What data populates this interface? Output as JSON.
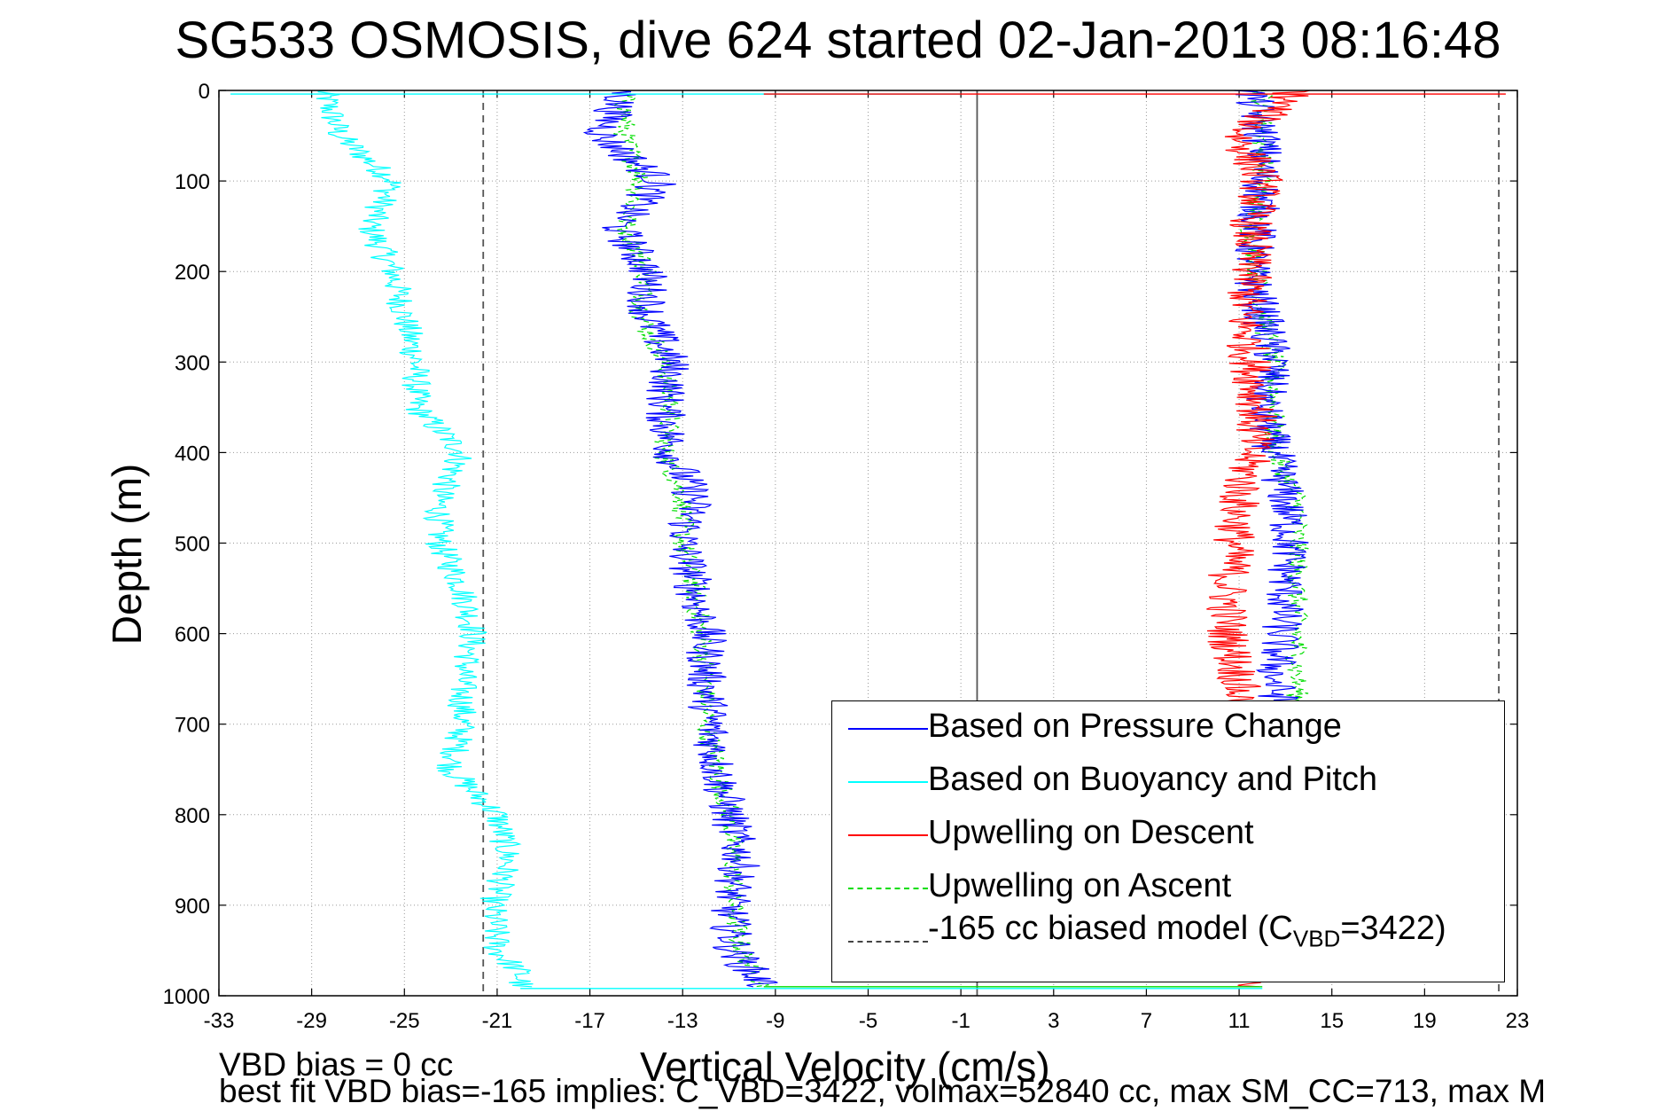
{
  "title": "SG533 OSMOSIS, dive 624 started 02-Jan-2013 08:16:48",
  "footer": {
    "line1": "VBD bias = 0 cc",
    "line2": "best fit VBD bias=-165 implies: C_VBD=3422, volmax=52840 cc, max SM_CC=713, max M"
  },
  "chart_data": {
    "type": "line",
    "title": "SG533 OSMOSIS, dive 624 started 02-Jan-2013 08:16:48",
    "xlabel": "Vertical Velocity (cm/s)",
    "ylabel": "Depth (m)",
    "xlim": [
      -33,
      23
    ],
    "ylim": [
      1000,
      0
    ],
    "x_inverted": false,
    "y_inverted": true,
    "x_ticks": [
      "-33",
      "-29",
      "-25",
      "-21",
      "-17",
      "-13",
      "-9",
      "-5",
      "-1",
      "3",
      "7",
      "11",
      "15",
      "19",
      "23"
    ],
    "y_ticks": [
      "0",
      "100",
      "200",
      "300",
      "400",
      "500",
      "600",
      "700",
      "800",
      "900",
      "1000"
    ],
    "grid": true,
    "legend_position": "bottom-right",
    "reference_lines": [
      {
        "x": -21.6,
        "style": "dashed",
        "color": "#555555"
      },
      {
        "x": -0.3,
        "style": "solid",
        "color": "#555555"
      },
      {
        "x": 22.2,
        "style": "dashed",
        "color": "#555555"
      }
    ],
    "series": [
      {
        "name": "Based on Pressure Change",
        "color": "#0000ff",
        "style": "solid",
        "depth": [
          0,
          50,
          100,
          150,
          200,
          250,
          300,
          350,
          400,
          450,
          500,
          550,
          600,
          650,
          700,
          750,
          800,
          850,
          900,
          950,
          990
        ],
        "x": [
          -15.5,
          -16.5,
          -14.0,
          -15.8,
          -14.5,
          -14.5,
          -13.5,
          -13.8,
          -13.5,
          -12.5,
          -13.0,
          -12.5,
          -12.0,
          -12.0,
          -11.8,
          -11.5,
          -11.0,
          -10.5,
          -11.0,
          -10.8,
          -9.5
        ],
        "depth_ascent": [
          0,
          50,
          100,
          150,
          200,
          250,
          300,
          350,
          400,
          450,
          500,
          550,
          600,
          650,
          700
        ],
        "x_ascent": [
          11.5,
          12.0,
          12.0,
          11.8,
          11.5,
          12.0,
          12.5,
          12.0,
          12.5,
          13.0,
          13.2,
          13.0,
          12.8,
          12.5,
          13.0
        ]
      },
      {
        "name": "Based on Buoyancy and Pitch",
        "color": "#00ffff",
        "style": "solid",
        "depth": [
          0,
          50,
          100,
          150,
          200,
          250,
          300,
          350,
          400,
          450,
          500,
          550,
          600,
          650,
          700,
          750,
          800,
          850,
          900,
          950,
          975,
          990
        ],
        "x": [
          -28.5,
          -27.8,
          -25.5,
          -26.5,
          -25.5,
          -25.0,
          -24.5,
          -24.5,
          -22.5,
          -23.5,
          -23.5,
          -22.5,
          -22.0,
          -22.5,
          -22.5,
          -23.0,
          -21.0,
          -20.5,
          -21.2,
          -21.0,
          -20.0,
          -20.0
        ]
      },
      {
        "name": "Upwelling on Descent",
        "color": "#ff0000",
        "style": "solid",
        "depth": [
          0,
          50,
          100,
          150,
          200,
          250,
          300,
          350,
          400,
          450,
          500,
          550,
          600,
          650,
          990
        ],
        "x": [
          13.5,
          11.0,
          12.0,
          11.5,
          11.5,
          11.2,
          11.5,
          11.8,
          11.5,
          11.0,
          10.8,
          10.5,
          10.5,
          11.0,
          11.0
        ]
      },
      {
        "name": "Upwelling on Ascent",
        "color": "#00dd00",
        "style": "dashed",
        "depth": [
          0,
          50,
          100,
          150,
          200,
          250,
          300,
          350,
          400,
          450,
          500,
          550,
          600,
          650,
          700,
          750,
          800,
          850,
          900,
          950,
          990
        ],
        "x": [
          -15.5,
          -15.5,
          -14.8,
          -15.5,
          -14.5,
          -14.8,
          -13.8,
          -13.5,
          -13.8,
          -13.0,
          -13.0,
          -12.5,
          -12.2,
          -12.0,
          -12.0,
          -11.5,
          -11.0,
          -10.8,
          -10.8,
          -10.5,
          -9.5
        ],
        "depth_ascent": [
          0,
          50,
          100,
          150,
          200,
          250,
          300,
          350,
          400,
          450,
          500,
          550,
          600,
          650,
          700
        ],
        "x_ascent": [
          12.0,
          12.0,
          12.0,
          11.5,
          11.8,
          12.0,
          12.5,
          12.5,
          12.5,
          13.5,
          13.5,
          13.5,
          13.5,
          13.5,
          13.5
        ]
      },
      {
        "name_prefix": "-165 cc biased model (C",
        "name_sub": "VBD",
        "name_suffix": "=3422)",
        "color": "#444444",
        "style": "dashed"
      }
    ]
  }
}
